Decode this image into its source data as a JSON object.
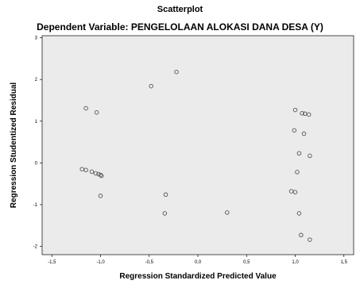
{
  "chart_data": {
    "type": "scatter",
    "title": "Scatterplot",
    "subtitle": "Dependent Variable: PENGELOLAAN ALOKASI DANA DESA (Y)",
    "xlabel": "Regression Standardized Predicted Value",
    "ylabel": "Regression Studentized Residual",
    "xlim": [
      -1.6,
      1.6
    ],
    "ylim": [
      -2.2,
      3.05
    ],
    "x_ticks": [
      -1.5,
      -1.0,
      -0.5,
      0.0,
      0.5,
      1.0,
      1.5
    ],
    "x_tick_labels": [
      "-1,5",
      "-1,0",
      "-0,5",
      "0,0",
      "0,5",
      "1,0",
      "1,5"
    ],
    "y_ticks": [
      -2,
      -1,
      0,
      1,
      2,
      3
    ],
    "y_tick_labels": [
      "-2",
      "-1",
      "0",
      "1",
      "2",
      "3"
    ],
    "grid": false,
    "plot_background": "#ebebeb",
    "marker_color": "#555555",
    "points": [
      {
        "x": -0.22,
        "y": 2.18
      },
      {
        "x": -0.48,
        "y": 1.84
      },
      {
        "x": -1.15,
        "y": 1.31
      },
      {
        "x": -1.04,
        "y": 1.21
      },
      {
        "x": -1.19,
        "y": -0.15
      },
      {
        "x": -1.15,
        "y": -0.17
      },
      {
        "x": -1.09,
        "y": -0.21
      },
      {
        "x": -1.05,
        "y": -0.25
      },
      {
        "x": -1.02,
        "y": -0.27
      },
      {
        "x": -1.0,
        "y": -0.29
      },
      {
        "x": -0.99,
        "y": -0.31
      },
      {
        "x": -1.0,
        "y": -0.79
      },
      {
        "x": -0.33,
        "y": -0.76
      },
      {
        "x": -0.34,
        "y": -1.21
      },
      {
        "x": 0.3,
        "y": -1.19
      },
      {
        "x": 1.0,
        "y": 1.27
      },
      {
        "x": 1.07,
        "y": 1.19
      },
      {
        "x": 1.1,
        "y": 1.18
      },
      {
        "x": 1.14,
        "y": 1.16
      },
      {
        "x": 0.99,
        "y": 0.78
      },
      {
        "x": 1.09,
        "y": 0.7
      },
      {
        "x": 1.04,
        "y": 0.23
      },
      {
        "x": 1.15,
        "y": 0.17
      },
      {
        "x": 1.02,
        "y": -0.22
      },
      {
        "x": 0.96,
        "y": -0.68
      },
      {
        "x": 1.0,
        "y": -0.7
      },
      {
        "x": 1.04,
        "y": -1.21
      },
      {
        "x": 1.06,
        "y": -1.73
      },
      {
        "x": 1.15,
        "y": -1.84
      }
    ]
  }
}
